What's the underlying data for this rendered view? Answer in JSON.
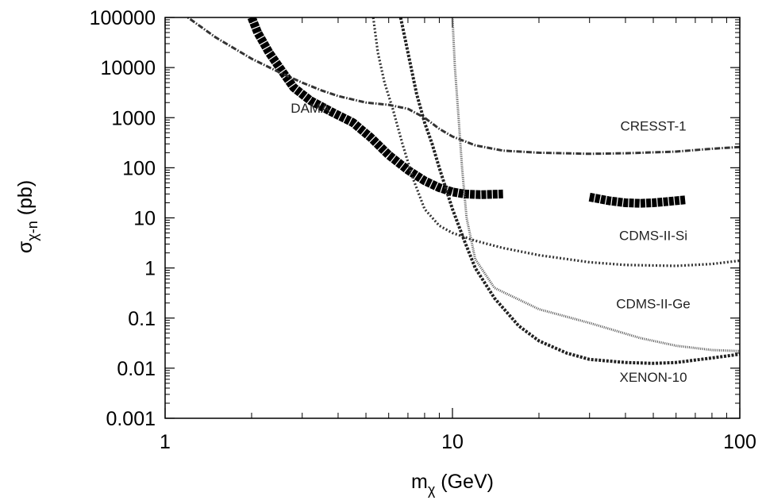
{
  "chart_data": {
    "type": "line",
    "x_scale": "log",
    "y_scale": "log",
    "xlim": [
      1,
      100
    ],
    "ylim": [
      0.001,
      100000
    ],
    "xlabel": "m",
    "xlabel_sub": "χ",
    "xlabel_unit": " (GeV)",
    "ylabel": "σ",
    "ylabel_sub": "χ-n",
    "ylabel_unit": " (pb)",
    "x_ticks": [
      {
        "value": 1,
        "label": "1"
      },
      {
        "value": 10,
        "label": "10"
      },
      {
        "value": 100,
        "label": "100"
      }
    ],
    "y_ticks": [
      {
        "value": 100000,
        "label": "100000"
      },
      {
        "value": 10000,
        "label": "10000"
      },
      {
        "value": 1000,
        "label": "1000"
      },
      {
        "value": 100,
        "label": "100"
      },
      {
        "value": 10,
        "label": "10"
      },
      {
        "value": 1,
        "label": "1"
      },
      {
        "value": 0.1,
        "label": "0.1"
      },
      {
        "value": 0.01,
        "label": "0.01"
      },
      {
        "value": 0.001,
        "label": "0.001"
      }
    ],
    "series": [
      {
        "name": "DAMA",
        "style": "thick",
        "label_at": [
          3.2,
          1250
        ],
        "segments": [
          [
            [
              2.0,
              100000
            ],
            [
              2.1,
              50000
            ],
            [
              2.3,
              20000
            ],
            [
              2.5,
              10000
            ],
            [
              2.8,
              4000
            ],
            [
              3.2,
              2200
            ],
            [
              3.8,
              1300
            ],
            [
              4.5,
              800
            ],
            [
              5.2,
              400
            ],
            [
              6.0,
              180
            ],
            [
              7.0,
              90
            ],
            [
              8.0,
              55
            ],
            [
              9.0,
              40
            ],
            [
              10.0,
              33
            ],
            [
              11.0,
              30
            ],
            [
              12.5,
              29
            ],
            [
              15.0,
              30
            ]
          ],
          [
            [
              30,
              26
            ],
            [
              35,
              22
            ],
            [
              40,
              20
            ],
            [
              45,
              19.5
            ],
            [
              50,
              20
            ],
            [
              55,
              21
            ],
            [
              65,
              23
            ]
          ]
        ]
      },
      {
        "name": "CRESST-1",
        "style": "dashdot",
        "label_at": [
          50,
          550
        ],
        "segments": [
          [
            [
              1.2,
              100000
            ],
            [
              1.5,
              40000
            ],
            [
              2.0,
              15000
            ],
            [
              2.5,
              8000
            ],
            [
              3.0,
              5000
            ],
            [
              3.5,
              3500
            ],
            [
              4.0,
              2700
            ],
            [
              5.0,
              2000
            ],
            [
              6.0,
              1800
            ],
            [
              7.0,
              1500
            ],
            [
              8.0,
              1000
            ],
            [
              9.0,
              600
            ],
            [
              10.0,
              420
            ],
            [
              12.0,
              280
            ],
            [
              15.0,
              220
            ],
            [
              20.0,
              200
            ],
            [
              30.0,
              190
            ],
            [
              40.0,
              195
            ],
            [
              60.0,
              210
            ],
            [
              80.0,
              240
            ],
            [
              100.0,
              260
            ]
          ]
        ]
      },
      {
        "name": "CDMS-II-Si",
        "style": "dotted",
        "label_at": [
          50,
          3.6
        ],
        "segments": [
          [
            [
              5.3,
              100000
            ],
            [
              5.5,
              20000
            ],
            [
              5.8,
              5000
            ],
            [
              6.2,
              1500
            ],
            [
              6.7,
              300
            ],
            [
              7.3,
              60
            ],
            [
              8.0,
              15
            ],
            [
              9.0,
              7
            ],
            [
              10.0,
              5
            ],
            [
              12.0,
              3.5
            ],
            [
              15.0,
              2.5
            ],
            [
              20.0,
              1.8
            ],
            [
              30.0,
              1.3
            ],
            [
              40.0,
              1.15
            ],
            [
              60.0,
              1.1
            ],
            [
              80.0,
              1.2
            ],
            [
              100.0,
              1.4
            ]
          ]
        ]
      },
      {
        "name": "CDMS-II-Ge",
        "style": "fine",
        "label_at": [
          50,
          0.155
        ],
        "segments": [
          [
            [
              10.0,
              100000
            ],
            [
              10.2,
              10000
            ],
            [
              10.5,
              1000
            ],
            [
              10.8,
              100
            ],
            [
              11.2,
              10
            ],
            [
              12.0,
              1.5
            ],
            [
              14.0,
              0.4
            ],
            [
              20.0,
              0.15
            ],
            [
              30.0,
              0.08
            ],
            [
              45.0,
              0.04
            ],
            [
              60.0,
              0.028
            ],
            [
              80.0,
              0.023
            ],
            [
              100.0,
              0.022
            ]
          ]
        ]
      },
      {
        "name": "XENON-10",
        "style": "dashed",
        "label_at": [
          50,
          0.0054
        ],
        "segments": [
          [
            [
              6.6,
              100000
            ],
            [
              7.0,
              20000
            ],
            [
              7.5,
              3000
            ],
            [
              8.0,
              800
            ],
            [
              8.5,
              300
            ],
            [
              9.0,
              100
            ],
            [
              10.0,
              15
            ],
            [
              11.0,
              3.5
            ],
            [
              12.0,
              1.0
            ],
            [
              14.0,
              0.25
            ],
            [
              17.0,
              0.07
            ],
            [
              20.0,
              0.035
            ],
            [
              25.0,
              0.02
            ],
            [
              30.0,
              0.015
            ],
            [
              40.0,
              0.013
            ],
            [
              50.0,
              0.0125
            ],
            [
              60.0,
              0.013
            ],
            [
              80.0,
              0.016
            ],
            [
              100.0,
              0.019
            ]
          ]
        ]
      }
    ]
  }
}
